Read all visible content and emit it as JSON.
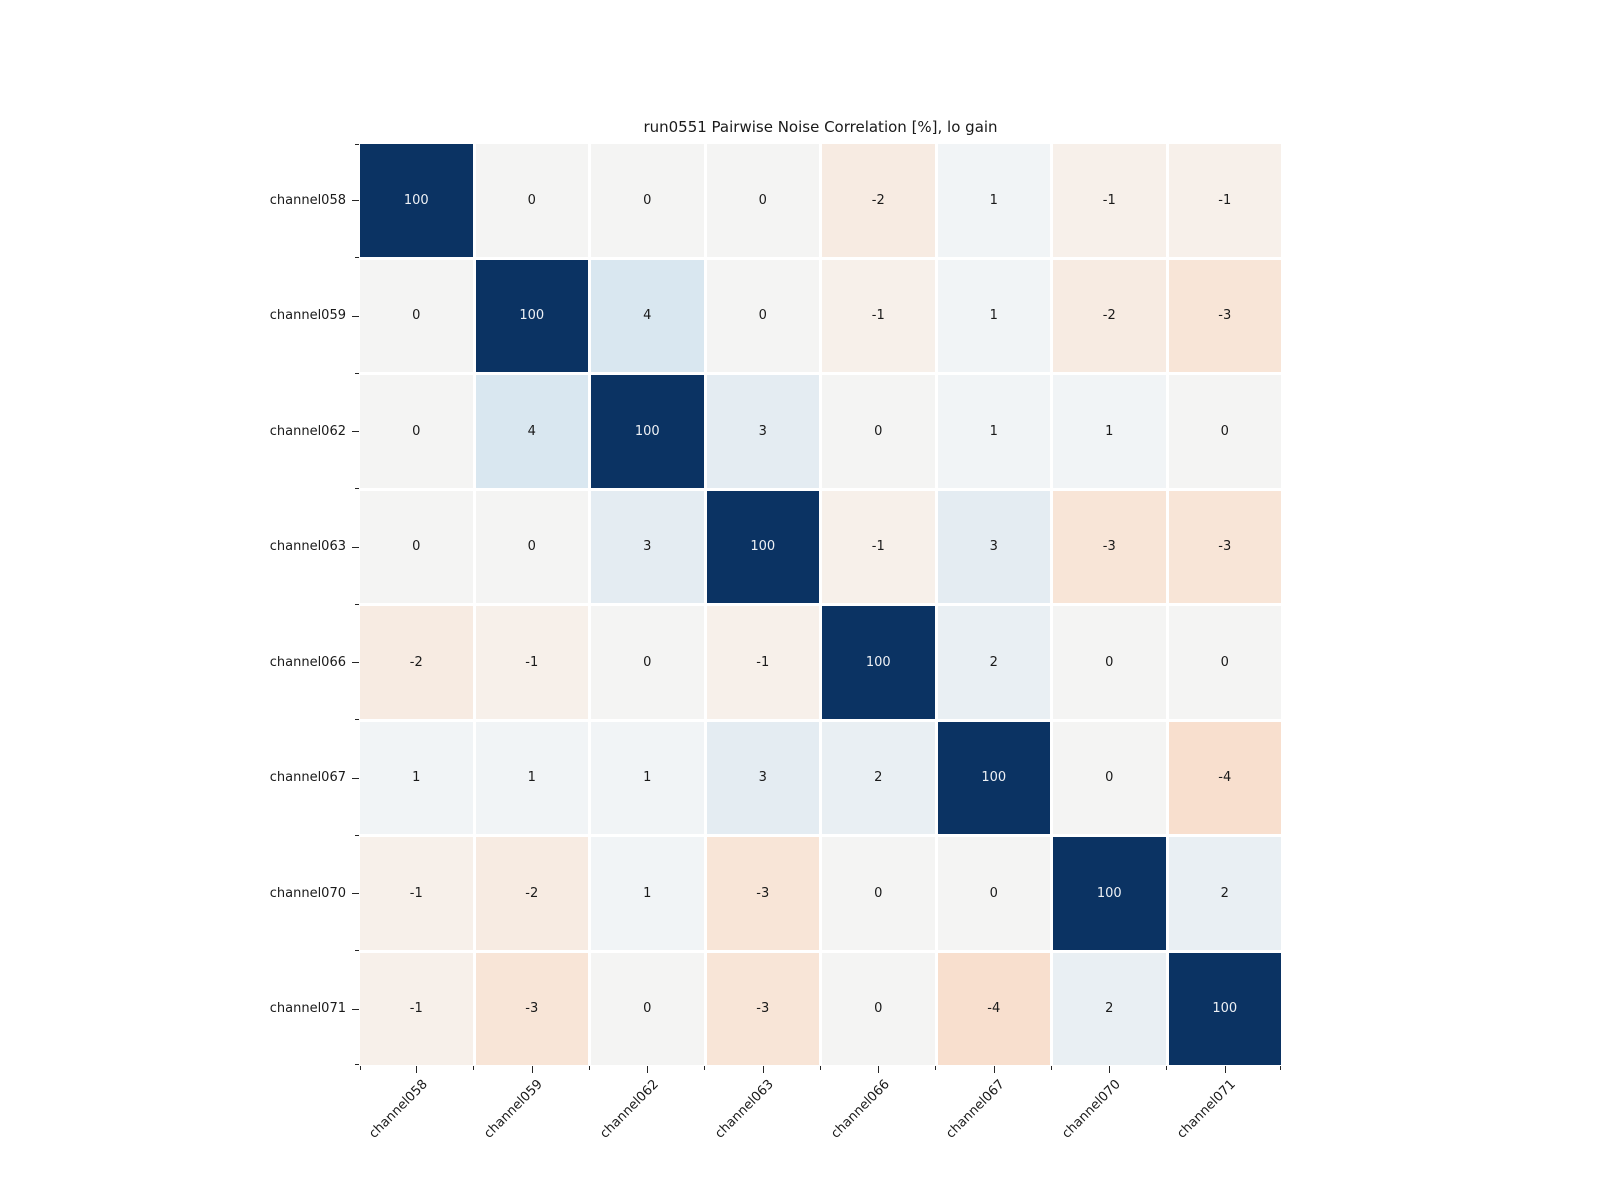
{
  "figure": {
    "background": "#ffffff"
  },
  "chart_data": {
    "type": "heatmap",
    "title": "run0551 Pairwise Noise Correlation [%], lo gain",
    "x_labels": [
      "channel058",
      "channel059",
      "channel062",
      "channel063",
      "channel066",
      "channel067",
      "channel070",
      "channel071"
    ],
    "y_labels": [
      "channel058",
      "channel059",
      "channel062",
      "channel063",
      "channel066",
      "channel067",
      "channel070",
      "channel071"
    ],
    "values": [
      [
        100,
        0,
        0,
        0,
        -2,
        1,
        -1,
        -1
      ],
      [
        0,
        100,
        4,
        0,
        -1,
        1,
        -2,
        -3
      ],
      [
        0,
        4,
        100,
        3,
        0,
        1,
        1,
        0
      ],
      [
        0,
        0,
        3,
        100,
        -1,
        3,
        -3,
        -3
      ],
      [
        -2,
        -1,
        0,
        -1,
        100,
        2,
        0,
        0
      ],
      [
        1,
        1,
        1,
        3,
        2,
        100,
        0,
        -4
      ],
      [
        -1,
        -2,
        1,
        -3,
        0,
        0,
        100,
        2
      ],
      [
        -1,
        -3,
        0,
        -3,
        0,
        -4,
        2,
        100
      ]
    ],
    "units": "%",
    "value_range": [
      -100,
      100
    ],
    "colormap": "diverging red-white-blue (negative=warm, positive=blue, diagonal=dark navy)",
    "annotations": true,
    "legend": "none",
    "grid": "white cell separators",
    "x_tick_rotation_deg": 45
  },
  "value_colors": {
    "100": "#0b3363",
    "4": "#d9e7f0",
    "3": "#e4ecf2",
    "2": "#e9eff3",
    "1": "#f1f4f6",
    "0": "#f4f4f3",
    "-1": "#f7f0ea",
    "-2": "#f7ebe2",
    "-3": "#f8e5d7",
    "-4": "#f8dfce"
  },
  "annotation_text_colors": {
    "diagonal": "#eef1f5",
    "offdiagonal": "#1a1a1a"
  }
}
